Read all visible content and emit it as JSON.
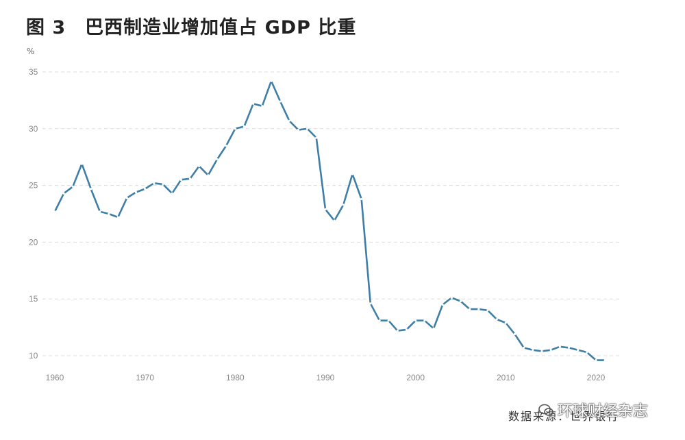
{
  "page": {
    "title": "图 3　巴西制造业增加值占 GDP 比重",
    "source": "数据来源：世界银行",
    "watermark": "环球财经杂志"
  },
  "colors": {
    "line": "#3f7ea6",
    "grid": "#dddddd",
    "text": "#888888"
  },
  "chart_data": {
    "type": "line",
    "title": "图 3　巴西制造业增加值占 GDP 比重",
    "ylabel": "%",
    "xlabel": "",
    "xlim": [
      1959,
      2023
    ],
    "ylim": [
      9,
      35
    ],
    "yticks": [
      10,
      15,
      20,
      25,
      30,
      35
    ],
    "xticks": [
      1960,
      1970,
      1980,
      1990,
      2000,
      2010,
      2020
    ],
    "grid": "horizontal-dashed",
    "series": [
      {
        "name": "制造业增加值占 GDP 比重",
        "x": [
          1960,
          1961,
          1962,
          1963,
          1964,
          1965,
          1966,
          1967,
          1968,
          1969,
          1970,
          1971,
          1972,
          1973,
          1974,
          1975,
          1976,
          1977,
          1978,
          1979,
          1980,
          1981,
          1982,
          1983,
          1984,
          1985,
          1986,
          1987,
          1988,
          1989,
          1990,
          1991,
          1992,
          1993,
          1994,
          1995,
          1996,
          1997,
          1998,
          1999,
          2000,
          2001,
          2002,
          2003,
          2004,
          2005,
          2006,
          2007,
          2008,
          2009,
          2010,
          2011,
          2012,
          2013,
          2014,
          2015,
          2016,
          2017,
          2018,
          2019,
          2020,
          2021
        ],
        "y": [
          22.7,
          24.3,
          24.9,
          26.9,
          24.7,
          22.7,
          22.5,
          22.2,
          23.9,
          24.4,
          24.7,
          25.2,
          25.1,
          24.3,
          25.5,
          25.6,
          26.7,
          25.9,
          27.3,
          28.5,
          30.0,
          30.2,
          32.2,
          32.0,
          34.2,
          32.4,
          30.7,
          29.9,
          30.0,
          29.2,
          22.9,
          21.9,
          23.3,
          26.0,
          23.8,
          14.6,
          13.1,
          13.1,
          12.2,
          12.3,
          13.1,
          13.1,
          12.4,
          14.5,
          15.1,
          14.8,
          14.1,
          14.1,
          14.0,
          13.2,
          12.9,
          11.9,
          10.7,
          10.5,
          10.4,
          10.5,
          10.8,
          10.7,
          10.5,
          10.3,
          9.6,
          9.6
        ]
      }
    ]
  }
}
